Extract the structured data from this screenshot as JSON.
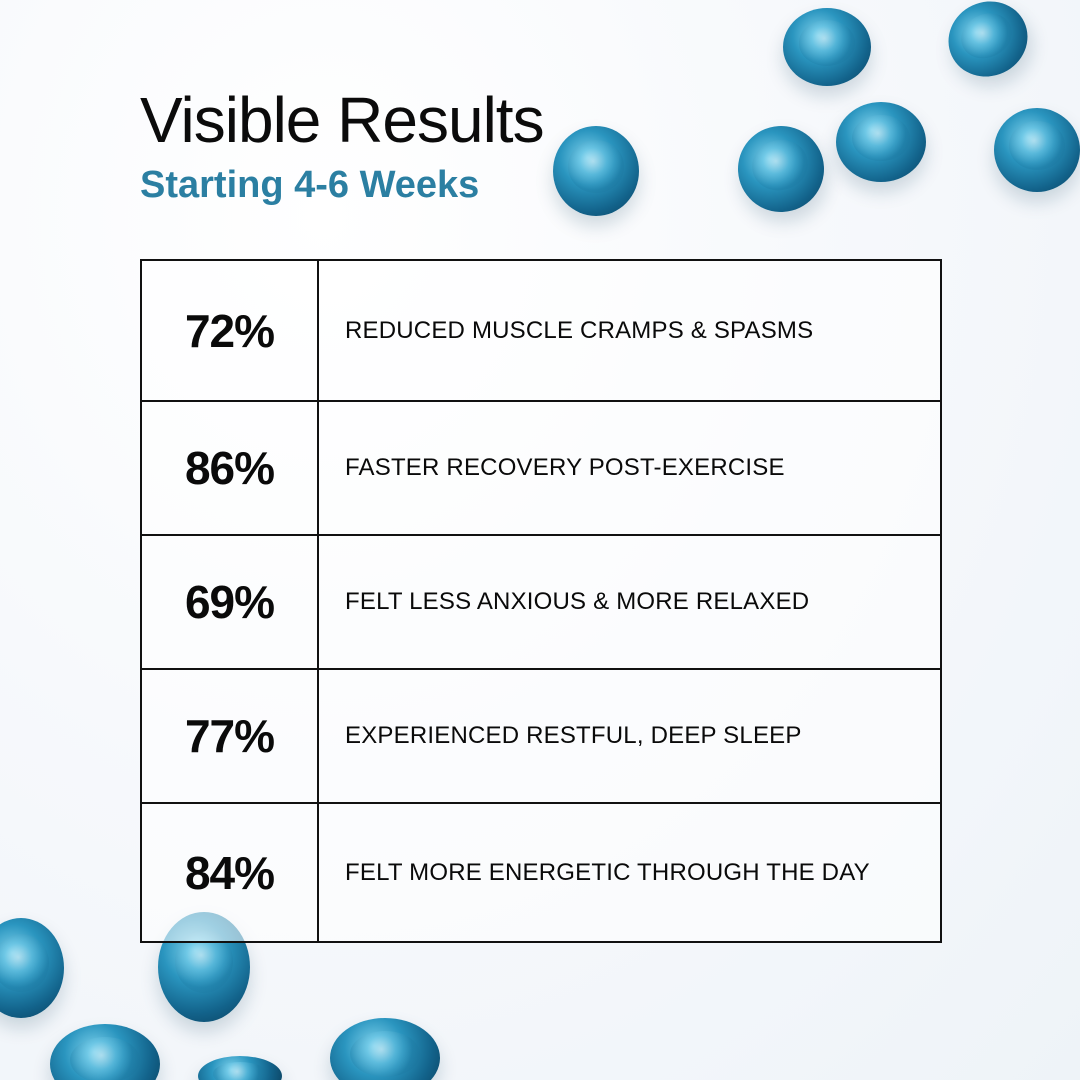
{
  "header": {
    "title": "Visible Results",
    "subtitle": "Starting 4-6 Weeks"
  },
  "colors": {
    "accent": "#2b7fa2",
    "text": "#0a0a0a",
    "capsule": "#1f7fa8"
  },
  "results": [
    {
      "percent": "72%",
      "label": "REDUCED MUSCLE CRAMPS & SPASMS"
    },
    {
      "percent": "86%",
      "label": "FASTER RECOVERY POST-EXERCISE"
    },
    {
      "percent": "69%",
      "label": "FELT LESS ANXIOUS & MORE RELAXED"
    },
    {
      "percent": "77%",
      "label": "EXPERIENCED RESTFUL, DEEP SLEEP"
    },
    {
      "percent": "84%",
      "label": "FELT MORE ENERGETIC THROUGH THE DAY"
    }
  ],
  "decorations": {
    "icon": "gummy-capsule-icon"
  }
}
